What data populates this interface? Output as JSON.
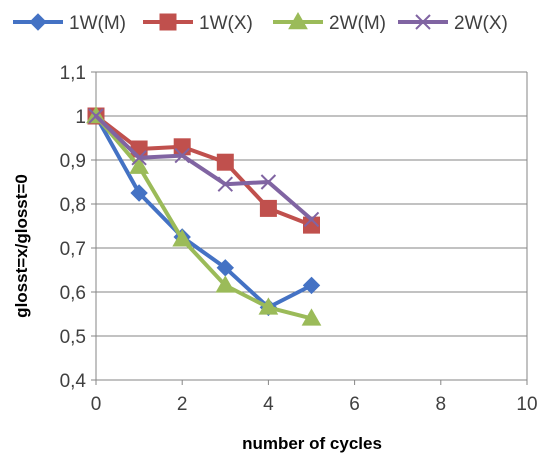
{
  "chart_data": {
    "type": "line",
    "title": "",
    "xlabel": "number of cycles",
    "ylabel": "glosst=x/glosst=0",
    "xlim": [
      0,
      10
    ],
    "ylim": [
      0.4,
      1.1
    ],
    "x_ticks": [
      0,
      2,
      4,
      6,
      8,
      10
    ],
    "y_ticks": [
      0.4,
      0.5,
      0.6,
      0.7,
      0.8,
      0.9,
      1.0,
      1.1
    ],
    "x_tick_labels": [
      "0",
      "2",
      "4",
      "6",
      "8",
      "10"
    ],
    "y_tick_labels": [
      "0,4",
      "0,5",
      "0,6",
      "0,7",
      "0,8",
      "0,9",
      "1",
      "1,1"
    ],
    "grid": "horizontal",
    "legend_position": "top",
    "series": [
      {
        "name": "1W(M)",
        "color": "#4472C4",
        "marker": "diamond",
        "x": [
          0,
          1,
          2,
          3,
          4,
          5
        ],
        "values": [
          1.0,
          0.825,
          0.725,
          0.655,
          0.565,
          0.615
        ]
      },
      {
        "name": "1W(X)",
        "color": "#C0504D",
        "marker": "square",
        "x": [
          0,
          1,
          2,
          3,
          4,
          5
        ],
        "values": [
          1.0,
          0.925,
          0.93,
          0.895,
          0.79,
          0.752
        ]
      },
      {
        "name": "2W(M)",
        "color": "#9BBB59",
        "marker": "triangle",
        "x": [
          0,
          1,
          2,
          3,
          4,
          5
        ],
        "values": [
          1.0,
          0.885,
          0.72,
          0.615,
          0.565,
          0.54
        ]
      },
      {
        "name": "2W(X)",
        "color": "#8064A2",
        "marker": "x",
        "x": [
          0,
          1,
          2,
          3,
          4,
          5
        ],
        "values": [
          1.0,
          0.905,
          0.91,
          0.845,
          0.85,
          0.765
        ]
      }
    ]
  }
}
